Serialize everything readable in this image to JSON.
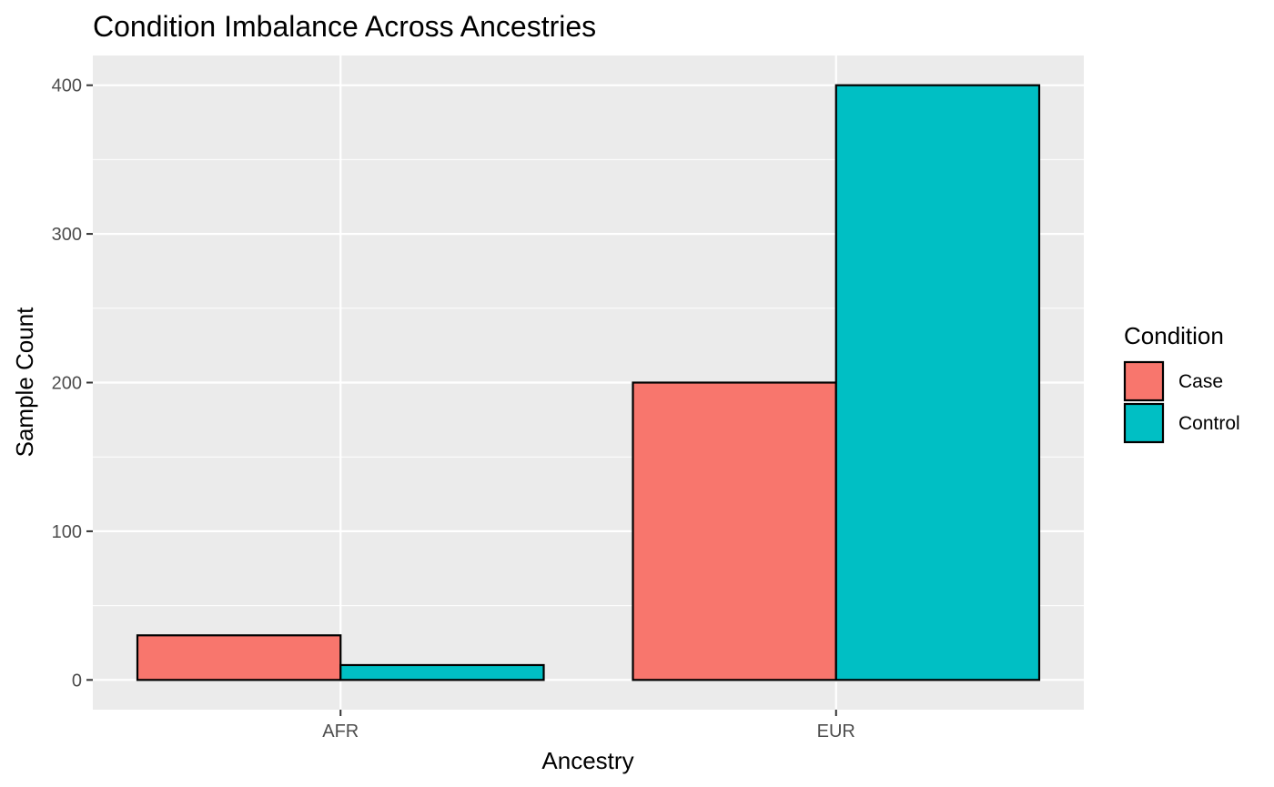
{
  "chart_data": {
    "type": "bar",
    "title": "Condition Imbalance Across Ancestries",
    "xlabel": "Ancestry",
    "ylabel": "Sample Count",
    "categories": [
      "AFR",
      "EUR"
    ],
    "series": [
      {
        "name": "Case",
        "color": "#F8766D",
        "values": [
          30,
          200
        ]
      },
      {
        "name": "Control",
        "color": "#00BFC4",
        "values": [
          10,
          400
        ]
      }
    ],
    "ylim": [
      -20,
      420
    ],
    "yticks": [
      0,
      100,
      200,
      300,
      400
    ],
    "ytick_labels": [
      "0",
      "100",
      "200",
      "300",
      "400"
    ],
    "grid": true,
    "legend": {
      "title": "Condition",
      "position": "right"
    },
    "bar_outline_color": "#000000",
    "panel_background": "#EBEBEB",
    "grid_color": "#FFFFFF"
  }
}
